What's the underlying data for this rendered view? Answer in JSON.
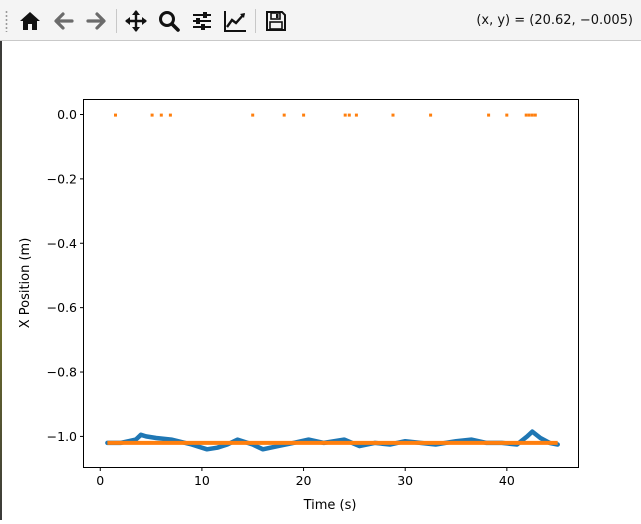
{
  "toolbar": {
    "buttons": [
      {
        "name": "home-icon",
        "tooltip": "Reset original view"
      },
      {
        "name": "back-arrow-icon",
        "tooltip": "Back"
      },
      {
        "name": "forward-arrow-icon",
        "tooltip": "Forward"
      },
      {
        "name": "pan-icon",
        "tooltip": "Pan"
      },
      {
        "name": "zoom-icon",
        "tooltip": "Zoom"
      },
      {
        "name": "subplots-config-icon",
        "tooltip": "Configure subplots"
      },
      {
        "name": "edit-axes-icon",
        "tooltip": "Edit axis"
      },
      {
        "name": "save-icon",
        "tooltip": "Save the figure"
      }
    ],
    "coordinates": "(x, y) = (20.62, −0.005)"
  },
  "colors": {
    "series_blue": "#1f77b4",
    "series_orange": "#ff7f0e",
    "toolbar_bg": "#f4f4f4"
  },
  "chart_data": {
    "type": "line",
    "title": "",
    "xlabel": "Time (s)",
    "ylabel": "X Position (m)",
    "xlim": [
      -1.6,
      47.0
    ],
    "ylim": [
      -1.095,
      0.045
    ],
    "xticks": [
      0,
      10,
      20,
      30,
      40
    ],
    "yticks": [
      0.0,
      -0.2,
      -0.4,
      -0.6,
      -0.8,
      -1.0
    ],
    "ytick_labels": [
      "0.0",
      "−0.2",
      "−0.4",
      "−0.6",
      "−0.8",
      "−1.0"
    ],
    "grid": false,
    "legend": "none",
    "series": [
      {
        "style": "thick line",
        "x": [
          0.7,
          2.0,
          3.5,
          4.0,
          4.5,
          5.5,
          7.0,
          9.0,
          10.5,
          11.5,
          12.5,
          13.5,
          15.0,
          16.0,
          17.5,
          19.0,
          20.5,
          22.0,
          24.0,
          25.5,
          27.0,
          28.5,
          30.0,
          31.5,
          33.0,
          35.0,
          36.5,
          38.0,
          39.5,
          41.0,
          42.0,
          42.5,
          43.3,
          44.2,
          45.0
        ],
        "y": [
          -1.02,
          -1.02,
          -1.01,
          -0.995,
          -1.0,
          -1.005,
          -1.01,
          -1.025,
          -1.04,
          -1.035,
          -1.025,
          -1.01,
          -1.025,
          -1.04,
          -1.03,
          -1.02,
          -1.01,
          -1.02,
          -1.01,
          -1.03,
          -1.02,
          -1.025,
          -1.015,
          -1.02,
          -1.025,
          -1.015,
          -1.01,
          -1.02,
          -1.02,
          -1.025,
          -1.0,
          -0.985,
          -1.005,
          -1.02,
          -1.025
        ]
      },
      {
        "style": "thick line",
        "x": [
          0.7,
          45.0
        ],
        "y": [
          -1.02,
          -1.02
        ]
      },
      {
        "style": "markers",
        "x": [
          1.5,
          5.1,
          6.0,
          6.9,
          15.0,
          18.1,
          20.0,
          24.1,
          24.5,
          25.2,
          28.8,
          32.5,
          38.2,
          40.0,
          41.9,
          42.2,
          42.5,
          42.8
        ],
        "y": [
          -0.002,
          -0.002,
          -0.002,
          -0.002,
          -0.002,
          -0.002,
          -0.002,
          -0.002,
          -0.002,
          -0.002,
          -0.002,
          -0.002,
          -0.002,
          -0.002,
          -0.002,
          -0.002,
          -0.002,
          -0.002
        ]
      }
    ]
  }
}
